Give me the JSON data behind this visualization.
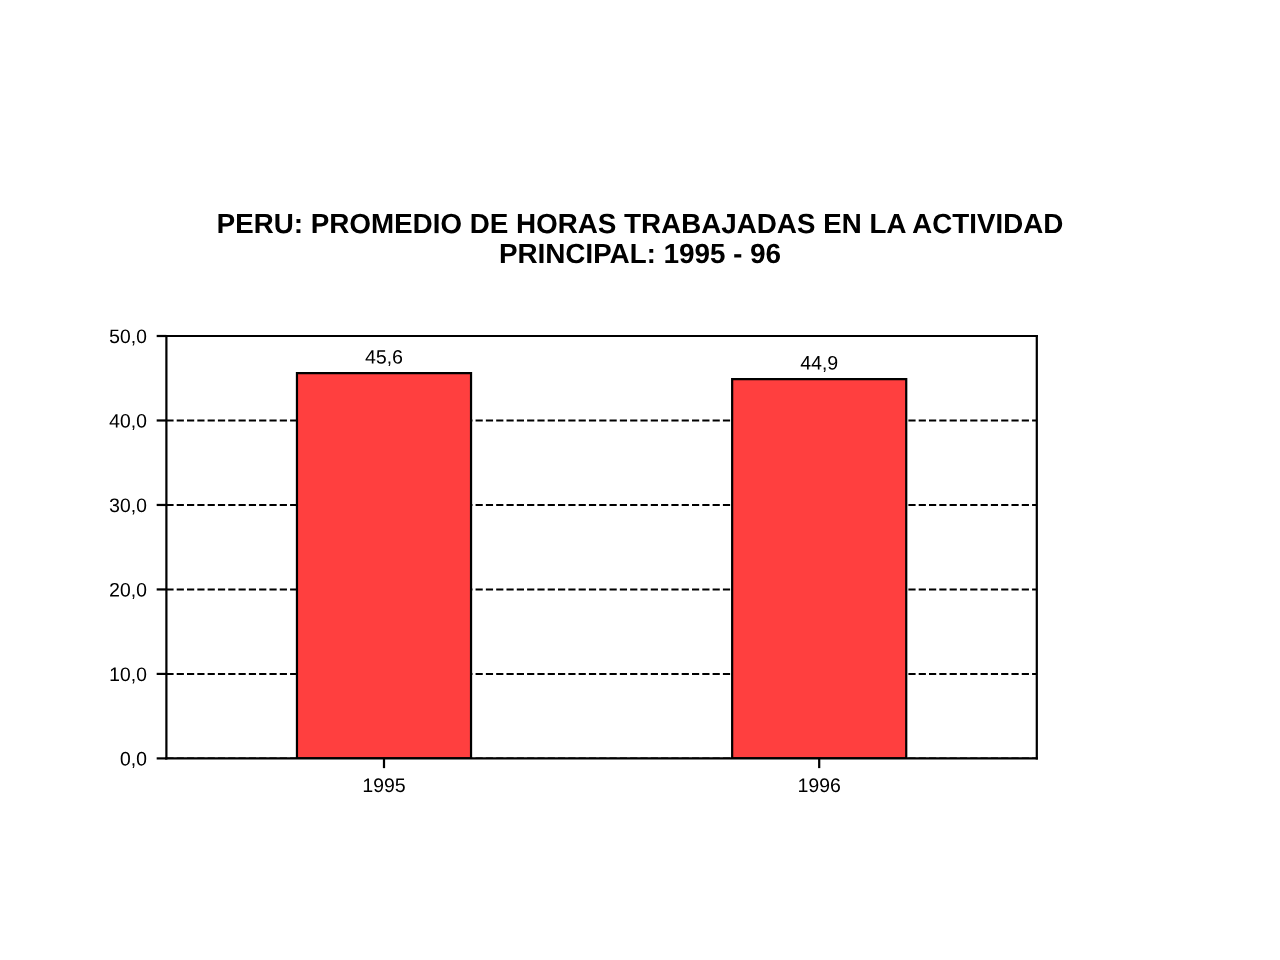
{
  "chart_data": {
    "type": "bar",
    "title": "PERU: PROMEDIO DE HORAS TRABAJADAS EN LA ACTIVIDAD\nPRINCIPAL: 1995 - 96",
    "categories": [
      "1995",
      "1996"
    ],
    "values": [
      45.6,
      44.9
    ],
    "value_labels": [
      "45,6",
      "44,9"
    ],
    "color": "#ff3f3f",
    "ylim": [
      0,
      50
    ],
    "yticks": [
      {
        "value": 0,
        "label": "0,0"
      },
      {
        "value": 10,
        "label": "10,0"
      },
      {
        "value": 20,
        "label": "20,0"
      },
      {
        "value": 30,
        "label": "30,0"
      },
      {
        "value": 40,
        "label": "40,0"
      },
      {
        "value": 50,
        "label": "50,0"
      }
    ],
    "grid": "y",
    "legend": false
  }
}
